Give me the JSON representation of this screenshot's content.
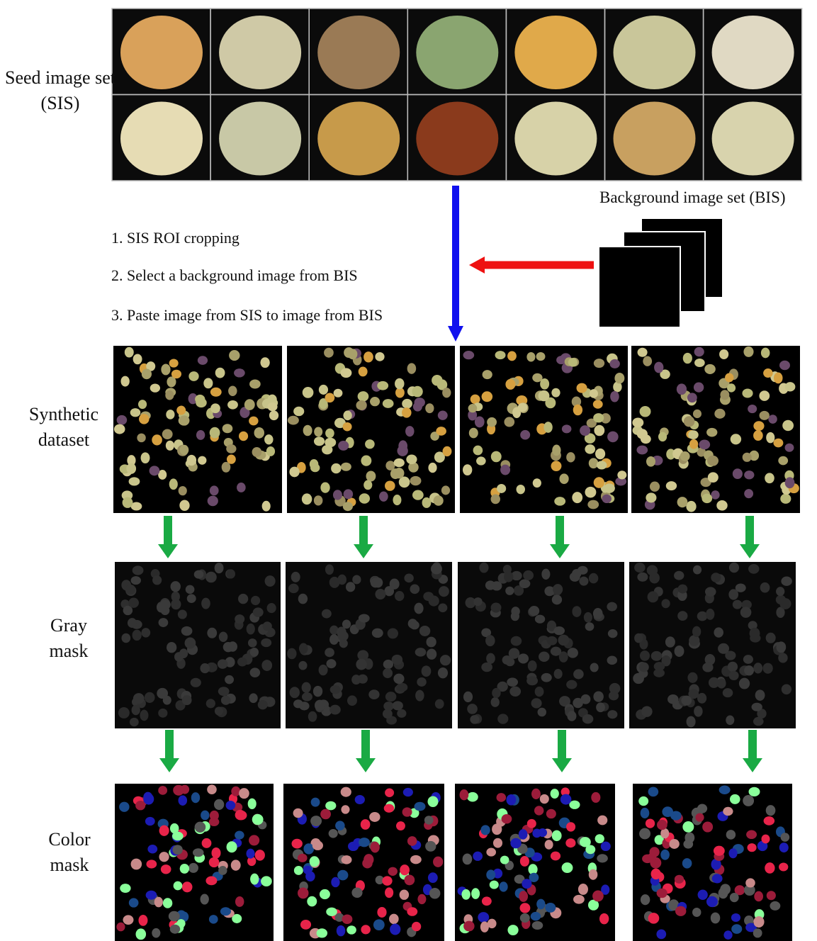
{
  "sis_label": "Seed image set (SIS)",
  "bis_label": "Background image set (BIS)",
  "steps": [
    "1. SIS ROI cropping",
    "2. Select a background image from BIS",
    "3. Paste image from SIS to image from BIS"
  ],
  "rows": [
    {
      "label": "Synthetic dataset"
    },
    {
      "label": "Gray mask"
    },
    {
      "label": "Color mask"
    }
  ]
}
